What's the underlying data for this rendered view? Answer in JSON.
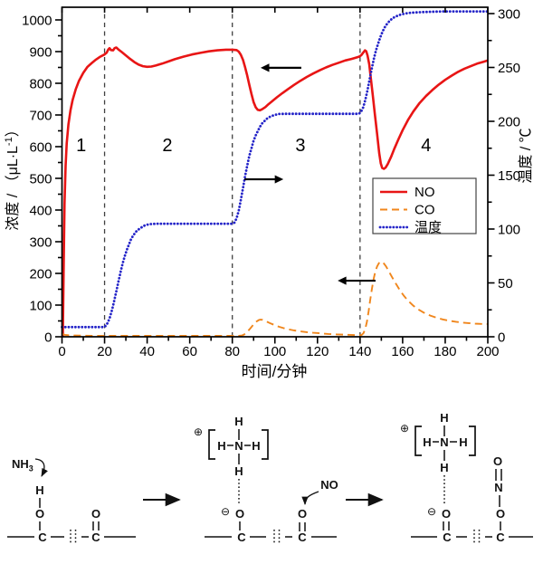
{
  "chart_data": {
    "type": "line",
    "title": "",
    "xlabel": "时间/分钟",
    "ylabel_left": "浓度 / （μL·L⁻¹）",
    "ylabel_left_parts": {
      "base": "浓度 / （μL·L",
      "sup": "-1",
      "close": "）"
    },
    "ylabel_right": "温度 / ℃",
    "xlim": [
      0,
      200
    ],
    "ylim_left": [
      0,
      1040
    ],
    "ylim_right": [
      0,
      306
    ],
    "x_ticks": [
      0,
      20,
      40,
      60,
      80,
      100,
      120,
      140,
      160,
      180,
      200
    ],
    "y_ticks_left": [
      0,
      100,
      200,
      300,
      400,
      500,
      600,
      700,
      800,
      900,
      1000
    ],
    "y_ticks_right": [
      0,
      50,
      100,
      150,
      200,
      250,
      300
    ],
    "grid": false,
    "vlines": {
      "x": [
        20,
        80,
        140
      ],
      "style": "dashed",
      "color": "#404040"
    },
    "region_labels": [
      {
        "text": "1",
        "x": 9
      },
      {
        "text": "2",
        "x": 49.5
      },
      {
        "text": "3",
        "x": 112
      },
      {
        "text": "4",
        "x": 171
      }
    ],
    "region_label_y": 606,
    "legend": {
      "position": "middle-right",
      "entries": [
        "NO",
        "CO",
        "温度"
      ]
    },
    "axis_arrows": [
      {
        "series": "NO",
        "points_to": "left-axis",
        "x_from": 112.4,
        "x_to": 93.3,
        "y_left": 849
      },
      {
        "series": "温度",
        "points_to": "right-axis",
        "x_from": 85.7,
        "x_to": 104,
        "y_left": 497
      },
      {
        "series": "CO",
        "points_to": "left-axis",
        "x_from": 147.3,
        "x_to": 129.5,
        "y_left": 177
      }
    ],
    "series": [
      {
        "name": "NO",
        "axis": "left",
        "color": "#e81515",
        "style": "solid",
        "points": [
          [
            0.4,
            0
          ],
          [
            0.8,
            230
          ],
          [
            1.2,
            420
          ],
          [
            1.7,
            540
          ],
          [
            2.2,
            610
          ],
          [
            3,
            670
          ],
          [
            4,
            715
          ],
          [
            5,
            748
          ],
          [
            6.5,
            782
          ],
          [
            8,
            808
          ],
          [
            10,
            833
          ],
          [
            12,
            852
          ],
          [
            14,
            864
          ],
          [
            16,
            875
          ],
          [
            18,
            884
          ],
          [
            20,
            891
          ],
          [
            21,
            897
          ],
          [
            21.7,
            906
          ],
          [
            22.3,
            911
          ],
          [
            23,
            905
          ],
          [
            24,
            904
          ],
          [
            24.7,
            911
          ],
          [
            25.5,
            913
          ],
          [
            26.5,
            907
          ],
          [
            28,
            899
          ],
          [
            30,
            888
          ],
          [
            32,
            877
          ],
          [
            34,
            867
          ],
          [
            36,
            859
          ],
          [
            38,
            854
          ],
          [
            40,
            852
          ],
          [
            42,
            853
          ],
          [
            44,
            856
          ],
          [
            47,
            862
          ],
          [
            50,
            869
          ],
          [
            53,
            876
          ],
          [
            57,
            884
          ],
          [
            61,
            891
          ],
          [
            65,
            896
          ],
          [
            69,
            901
          ],
          [
            73,
            904
          ],
          [
            77,
            906
          ],
          [
            80,
            906
          ],
          [
            82,
            905
          ],
          [
            83,
            900
          ],
          [
            84,
            890
          ],
          [
            85,
            874
          ],
          [
            86,
            851
          ],
          [
            87,
            824
          ],
          [
            88,
            795
          ],
          [
            89,
            766
          ],
          [
            90,
            741
          ],
          [
            91,
            724
          ],
          [
            92,
            716
          ],
          [
            93,
            715
          ],
          [
            94,
            718
          ],
          [
            95.5,
            725
          ],
          [
            97,
            734
          ],
          [
            99,
            745
          ],
          [
            101,
            756
          ],
          [
            103.5,
            769
          ],
          [
            106,
            781
          ],
          [
            109,
            795
          ],
          [
            112,
            808
          ],
          [
            115,
            820
          ],
          [
            118,
            831
          ],
          [
            121,
            841
          ],
          [
            124,
            850
          ],
          [
            127,
            858
          ],
          [
            130,
            865
          ],
          [
            133,
            872
          ],
          [
            136,
            877
          ],
          [
            138,
            881
          ],
          [
            139.5,
            884
          ],
          [
            140.5,
            888
          ],
          [
            141.5,
            897
          ],
          [
            142.3,
            904
          ],
          [
            142.9,
            901
          ],
          [
            143.5,
            888
          ],
          [
            144.3,
            860
          ],
          [
            145,
            820
          ],
          [
            146,
            760
          ],
          [
            147,
            700
          ],
          [
            148,
            640
          ],
          [
            149,
            580
          ],
          [
            149.7,
            548
          ],
          [
            150.4,
            533
          ],
          [
            151.2,
            530
          ],
          [
            152,
            534
          ],
          [
            153,
            545
          ],
          [
            154.5,
            567
          ],
          [
            156,
            592
          ],
          [
            158,
            623
          ],
          [
            160,
            652
          ],
          [
            162.5,
            684
          ],
          [
            165,
            711
          ],
          [
            168,
            738
          ],
          [
            171,
            760
          ],
          [
            174,
            779
          ],
          [
            177,
            796
          ],
          [
            180,
            811
          ],
          [
            183,
            824
          ],
          [
            186,
            836
          ],
          [
            189,
            846
          ],
          [
            192,
            854
          ],
          [
            195,
            862
          ],
          [
            198,
            868
          ],
          [
            200,
            872
          ]
        ]
      },
      {
        "name": "CO",
        "axis": "left",
        "color": "#f0861c",
        "style": "dashed",
        "points": [
          [
            0,
            9
          ],
          [
            1.5,
            6
          ],
          [
            3,
            5
          ],
          [
            6,
            4
          ],
          [
            10,
            3.5
          ],
          [
            15,
            3
          ],
          [
            20,
            3
          ],
          [
            30,
            3
          ],
          [
            40,
            3
          ],
          [
            50,
            3
          ],
          [
            60,
            3
          ],
          [
            70,
            3
          ],
          [
            80,
            3
          ],
          [
            83,
            3
          ],
          [
            84.5,
            4
          ],
          [
            85.5,
            7
          ],
          [
            86.5,
            12
          ],
          [
            87.5,
            19
          ],
          [
            88.5,
            27
          ],
          [
            89.5,
            35
          ],
          [
            90.5,
            43
          ],
          [
            91.5,
            49
          ],
          [
            92.5,
            53
          ],
          [
            93.3,
            54
          ],
          [
            94.2,
            53.5
          ],
          [
            95.2,
            51
          ],
          [
            96.5,
            47
          ],
          [
            98,
            42
          ],
          [
            100,
            36.5
          ],
          [
            102,
            31.5
          ],
          [
            104,
            27.5
          ],
          [
            106.5,
            23.5
          ],
          [
            109,
            20
          ],
          [
            112,
            17
          ],
          [
            115,
            14.5
          ],
          [
            118,
            12.5
          ],
          [
            121,
            11
          ],
          [
            125,
            9
          ],
          [
            129,
            7.5
          ],
          [
            133,
            6.5
          ],
          [
            137,
            5.5
          ],
          [
            140,
            5
          ],
          [
            140.8,
            6
          ],
          [
            141.6,
            11
          ],
          [
            142.4,
            24
          ],
          [
            143.2,
            47
          ],
          [
            144,
            80
          ],
          [
            144.8,
            117
          ],
          [
            145.6,
            152
          ],
          [
            146.4,
            183
          ],
          [
            147.2,
            207
          ],
          [
            148,
            222
          ],
          [
            148.8,
            232
          ],
          [
            149.6,
            237
          ],
          [
            150.4,
            236
          ],
          [
            151.2,
            231
          ],
          [
            152.2,
            222
          ],
          [
            153.5,
            207
          ],
          [
            155,
            189
          ],
          [
            156.5,
            171
          ],
          [
            158.5,
            149
          ],
          [
            160.5,
            130
          ],
          [
            162.5,
            114
          ],
          [
            165,
            98
          ],
          [
            167.5,
            86
          ],
          [
            170,
            76
          ],
          [
            173,
            67
          ],
          [
            176,
            60
          ],
          [
            179,
            54.5
          ],
          [
            182,
            50.5
          ],
          [
            185,
            47.5
          ],
          [
            188,
            45
          ],
          [
            191,
            43
          ],
          [
            194,
            41.5
          ],
          [
            197,
            40.5
          ],
          [
            200,
            40
          ]
        ]
      },
      {
        "name": "温度",
        "axis": "right",
        "color": "#2424c8",
        "style": "dotted",
        "points": [
          [
            0,
            9
          ],
          [
            4,
            9
          ],
          [
            8,
            9
          ],
          [
            12,
            9
          ],
          [
            16,
            9
          ],
          [
            19.5,
            9
          ],
          [
            20.5,
            10
          ],
          [
            21.5,
            13
          ],
          [
            22.5,
            18
          ],
          [
            23.5,
            25
          ],
          [
            24.5,
            33
          ],
          [
            25.5,
            42
          ],
          [
            26.5,
            51
          ],
          [
            27.5,
            60
          ],
          [
            28.5,
            68
          ],
          [
            29.5,
            75
          ],
          [
            30.5,
            81
          ],
          [
            31.5,
            86
          ],
          [
            32.5,
            91
          ],
          [
            33.5,
            94
          ],
          [
            34.5,
            97
          ],
          [
            35.5,
            99
          ],
          [
            37,
            101
          ],
          [
            38.5,
            103
          ],
          [
            40,
            104
          ],
          [
            42,
            104.7
          ],
          [
            45,
            105
          ],
          [
            50,
            105
          ],
          [
            60,
            105
          ],
          [
            70,
            105
          ],
          [
            80,
            105
          ],
          [
            81,
            106
          ],
          [
            82,
            110
          ],
          [
            83,
            117
          ],
          [
            84,
            127
          ],
          [
            85,
            138
          ],
          [
            86,
            149
          ],
          [
            87,
            159
          ],
          [
            88,
            168
          ],
          [
            89,
            175
          ],
          [
            90,
            182
          ],
          [
            91,
            187
          ],
          [
            92,
            191
          ],
          [
            93,
            195
          ],
          [
            94,
            198
          ],
          [
            95,
            200
          ],
          [
            96,
            202
          ],
          [
            97,
            203.5
          ],
          [
            98.5,
            205
          ],
          [
            100,
            206
          ],
          [
            102,
            206.8
          ],
          [
            105,
            207
          ],
          [
            110,
            207
          ],
          [
            120,
            207
          ],
          [
            130,
            207
          ],
          [
            139.5,
            207
          ],
          [
            140.5,
            209
          ],
          [
            141.5,
            213
          ],
          [
            142.5,
            220
          ],
          [
            143.5,
            229
          ],
          [
            144.5,
            239
          ],
          [
            145.5,
            249
          ],
          [
            146.5,
            258
          ],
          [
            147.5,
            266
          ],
          [
            148.5,
            272
          ],
          [
            149.5,
            278
          ],
          [
            150.5,
            283
          ],
          [
            151.5,
            287
          ],
          [
            152.5,
            290
          ],
          [
            154,
            293.5
          ],
          [
            155.5,
            296
          ],
          [
            157,
            297.5
          ],
          [
            159,
            299
          ],
          [
            161,
            300
          ],
          [
            164,
            300.8
          ],
          [
            168,
            301.3
          ],
          [
            173,
            301.7
          ],
          [
            180,
            302
          ],
          [
            190,
            302
          ],
          [
            200,
            302
          ]
        ]
      }
    ]
  },
  "mechanism": {
    "labels": {
      "nh3_base": "NH",
      "nh3_sub": "3",
      "h": "H",
      "o": "O",
      "c": "C",
      "n": "N",
      "no": "NO",
      "plus": "⊕",
      "minus": "⊖"
    }
  }
}
